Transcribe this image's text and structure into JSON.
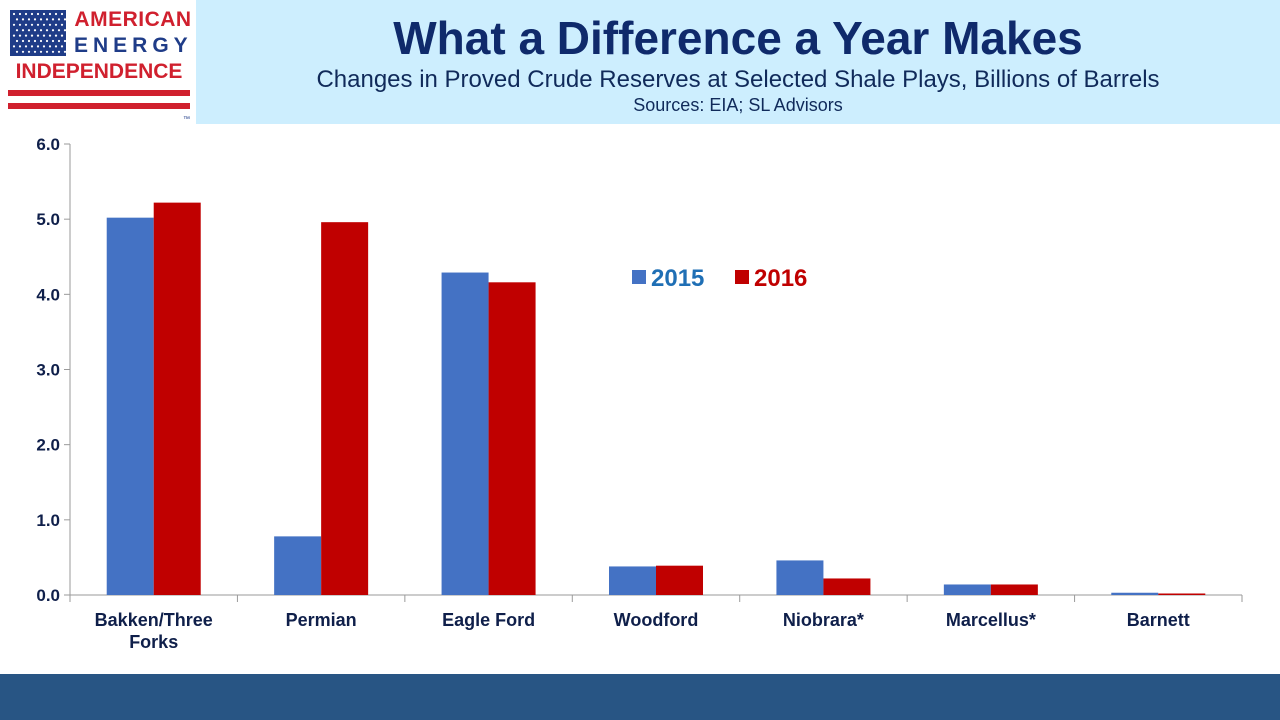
{
  "logo": {
    "line1": "AMERICAN",
    "line2": "ENERGY",
    "line3": "INDEPENDENCE",
    "tm": "™",
    "flag_icon": "us-flag-icon",
    "colors": {
      "blue": "#1f3c88",
      "red": "#d0202e"
    }
  },
  "header": {
    "title": "What a Difference a Year Makes",
    "subtitle": "Changes in Proved Crude Reserves at Selected Shale Plays, Billions of Barrels",
    "sources": "Sources: EIA; SL Advisors"
  },
  "chart_data": {
    "type": "bar",
    "categories": [
      [
        "Bakken/Three",
        "Forks"
      ],
      [
        "Permian"
      ],
      [
        "Eagle Ford"
      ],
      [
        "Woodford"
      ],
      [
        "Niobrara*"
      ],
      [
        "Marcellus*"
      ],
      [
        "Barnett"
      ]
    ],
    "series": [
      {
        "name": "2015",
        "values": [
          5.02,
          0.78,
          4.29,
          0.38,
          0.46,
          0.14,
          0.03
        ],
        "color": "#4472c4",
        "label_color": "#1f6fb5"
      },
      {
        "name": "2016",
        "values": [
          5.22,
          4.96,
          4.16,
          0.39,
          0.22,
          0.14,
          0.02
        ],
        "color": "#c00000",
        "label_color": "#c00000"
      }
    ],
    "ylim": [
      0,
      6
    ],
    "yticks": [
      "0.0",
      "1.0",
      "2.0",
      "3.0",
      "4.0",
      "5.0",
      "6.0"
    ],
    "grid": false,
    "legend_position": "upper-center"
  }
}
